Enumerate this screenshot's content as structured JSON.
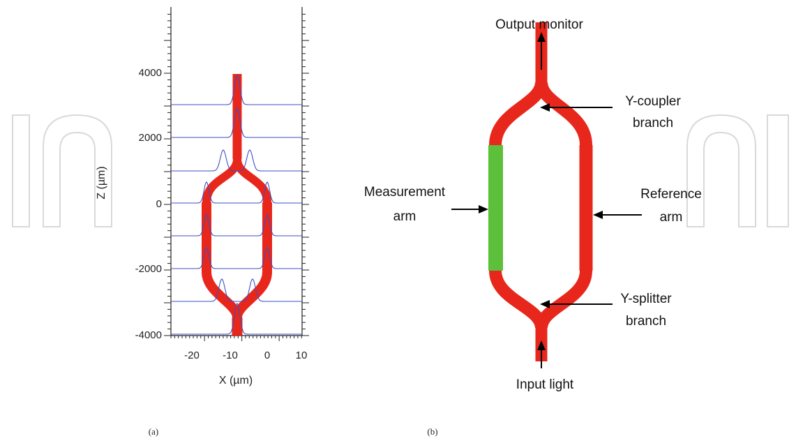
{
  "panel_a": {
    "caption": "(a)",
    "xlabel": "X (µm)",
    "ylabel": "Z (µm)",
    "x_ticks": [
      "-20",
      "-10",
      "0",
      "10"
    ],
    "y_ticks": [
      "4000",
      "2000",
      "0",
      "-2000",
      "-4000"
    ]
  },
  "panel_b": {
    "caption": "(b)",
    "labels": {
      "output_monitor": "Output monitor",
      "y_coupler_line1": "Y-coupler",
      "y_coupler_line2": "branch",
      "measurement_line1": "Measurement",
      "measurement_line2": "arm",
      "reference_line1": "Reference",
      "reference_line2": "arm",
      "y_splitter_line1": "Y-splitter",
      "y_splitter_line2": "branch",
      "input_light": "Input light"
    }
  },
  "colors": {
    "waveguide": "#e8271c",
    "measurement_arm": "#5cc03a",
    "mode_profile": "#3b4fc4",
    "watermark": "#d9d9d9"
  }
}
